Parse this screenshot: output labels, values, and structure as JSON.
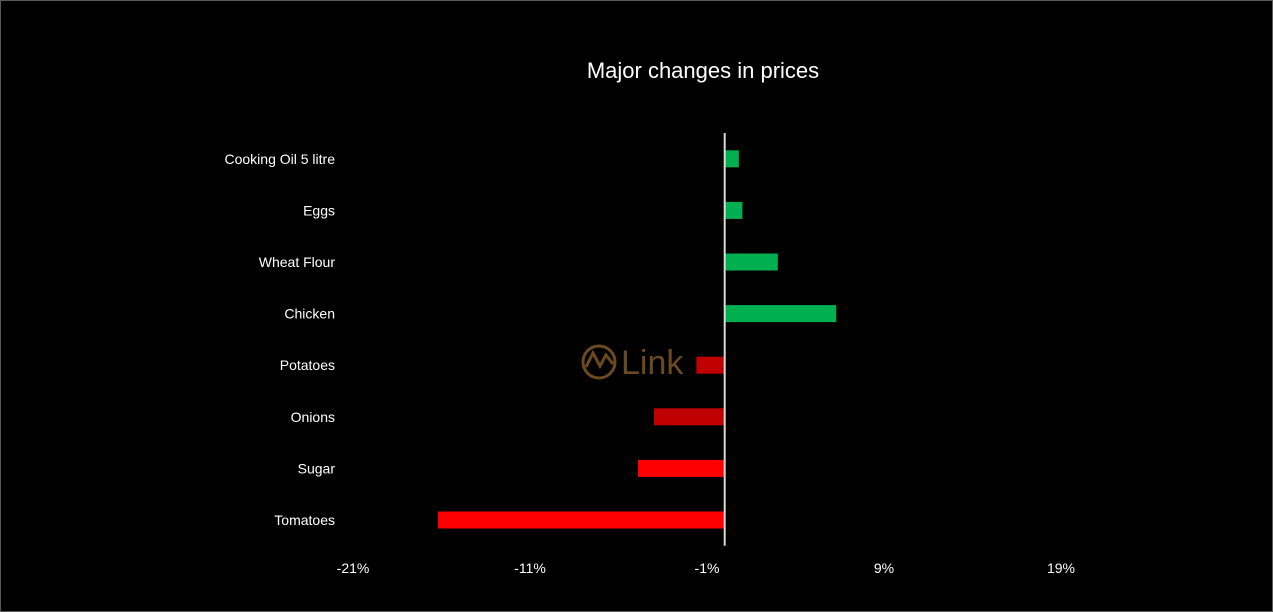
{
  "chart_data": {
    "type": "bar",
    "orientation": "horizontal",
    "title": "Major changes in prices",
    "categories": [
      "Cooking Oil 5 litre",
      "Eggs",
      "Wheat Flour",
      "Chicken",
      "Potatoes",
      "Onions",
      "Sugar",
      "Tomatoes"
    ],
    "values": [
      0.8,
      1.0,
      3.0,
      6.3,
      -1.6,
      -4.0,
      -4.9,
      -16.2
    ],
    "bar_colors": [
      "#00b050",
      "#00b050",
      "#00b050",
      "#00b050",
      "#c00000",
      "#c00000",
      "#ff0000",
      "#ff0000"
    ],
    "xlim": [
      -21,
      19
    ],
    "xticks": [
      -21,
      -11,
      -1,
      9,
      19
    ],
    "xtick_labels": [
      "-21%",
      "-11%",
      "-1%",
      "9%",
      "19%"
    ],
    "xlabel": "",
    "ylabel": "",
    "grid": false,
    "legend": "none",
    "axis_color": "#d9d9d9"
  },
  "watermark": {
    "text": "Link",
    "icon": "chart-wave-circle-icon",
    "color": "#6b4a22"
  }
}
